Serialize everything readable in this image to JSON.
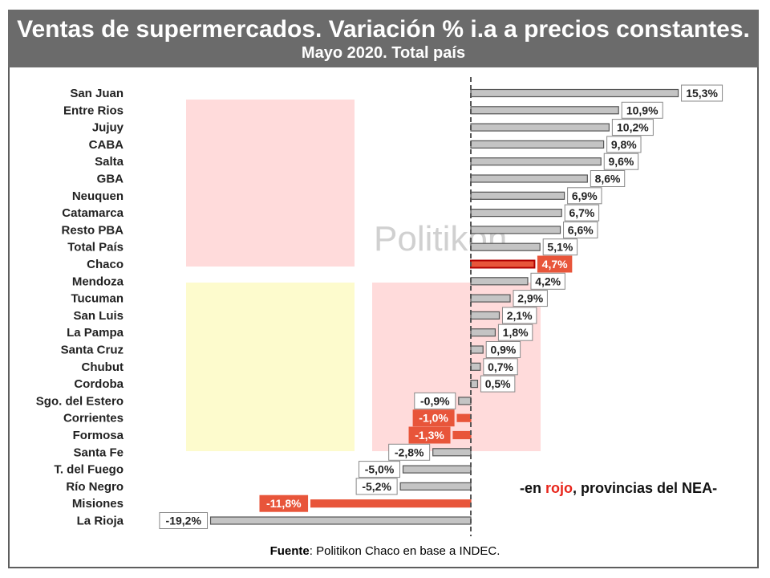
{
  "header": {
    "title": "Ventas de supermercados. Variación % i.a a precios constantes.",
    "subtitle": "Mayo 2020. Total país"
  },
  "watermark": "Politikon",
  "note": {
    "prefix": "-en ",
    "highlight": "rojo",
    "suffix": ", provincias del NEA-"
  },
  "source": {
    "label": "Fuente",
    "text": ": Politikon Chaco en base a INDEC."
  },
  "colors": {
    "bar": "#c4c4c4",
    "bar_edge": "#555555",
    "nea": "#e8553a",
    "label_nea_text": "#ffffff"
  },
  "chart_data": {
    "type": "bar",
    "orientation": "horizontal",
    "unit": "%",
    "categories": [
      "San Juan",
      "Entre Rios",
      "Jujuy",
      "CABA",
      "Salta",
      "GBA",
      "Neuquen",
      "Catamarca",
      "Resto PBA",
      "Total País",
      "Chaco",
      "Mendoza",
      "Tucuman",
      "San Luis",
      "La Pampa",
      "Santa Cruz",
      "Chubut",
      "Cordoba",
      "Sgo. del Estero",
      "Corrientes",
      "Formosa",
      "Santa Fe",
      "T. del Fuego",
      "Río Negro",
      "Misiones",
      "La Rioja"
    ],
    "values": [
      15.3,
      10.9,
      10.2,
      9.8,
      9.6,
      8.6,
      6.9,
      6.7,
      6.6,
      5.1,
      4.7,
      4.2,
      2.9,
      2.1,
      1.8,
      0.9,
      0.7,
      0.5,
      -0.9,
      -1.0,
      -1.3,
      -2.8,
      -5.0,
      -5.2,
      -11.8,
      -19.2
    ],
    "value_labels": [
      "15,3%",
      "10,9%",
      "10,2%",
      "9,8%",
      "9,6%",
      "8,6%",
      "6,9%",
      "6,7%",
      "6,6%",
      "5,1%",
      "4,7%",
      "4,2%",
      "2,9%",
      "2,1%",
      "1,8%",
      "0,9%",
      "0,7%",
      "0,5%",
      "-0,9%",
      "-1,0%",
      "-1,3%",
      "-2,8%",
      "-5,0%",
      "-5,2%",
      "-11,8%",
      "-19,2%"
    ],
    "highlighted": [
      "Chaco",
      "Corrientes",
      "Formosa",
      "Misiones"
    ],
    "zero_line": "dashed",
    "grid": false
  }
}
